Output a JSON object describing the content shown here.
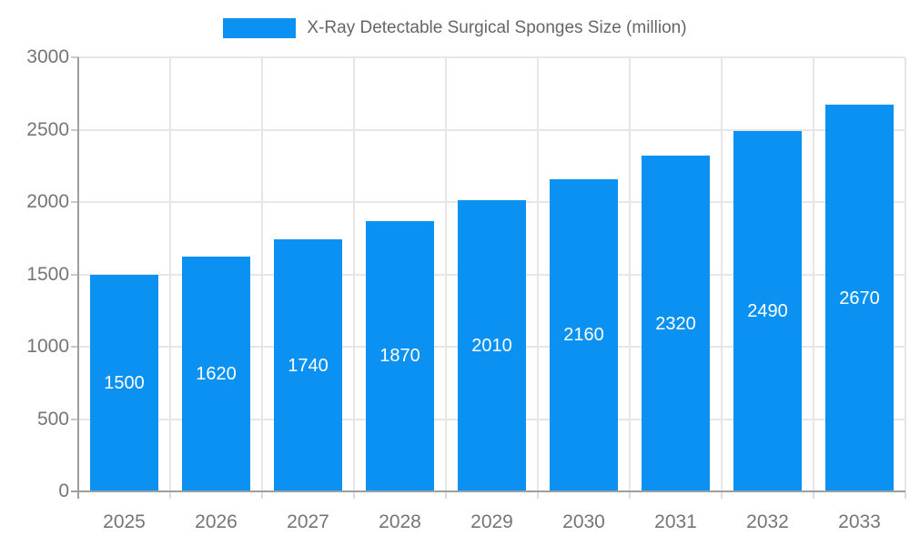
{
  "page": {
    "background_color": "#ffffff"
  },
  "legend": {
    "label": "X-Ray Detectable Surgical Sponges Size (million)",
    "swatch_color": "#0a91f2",
    "text_color": "#666666",
    "position": "top"
  },
  "chart_data": {
    "type": "bar",
    "title": "",
    "xlabel": "",
    "ylabel": "",
    "categories": [
      "2025",
      "2026",
      "2027",
      "2028",
      "2029",
      "2030",
      "2031",
      "2032",
      "2033"
    ],
    "series": [
      {
        "name": "X-Ray Detectable Surgical Sponges Size (million)",
        "values": [
          1500,
          1620,
          1740,
          1870,
          2010,
          2160,
          2320,
          2490,
          2670
        ]
      }
    ],
    "data_labels_shown": true,
    "data_label_color": "#ffffff",
    "ylim": [
      0,
      3000
    ],
    "yticks": [
      0,
      500,
      1000,
      1500,
      2000,
      2500,
      3000
    ],
    "grid": true,
    "legend_position": "top",
    "bar_color": "#0a91f2",
    "axis_color": "#9e9e9e",
    "grid_color": "#e6e6e6",
    "tick_label_color": "#757575"
  }
}
